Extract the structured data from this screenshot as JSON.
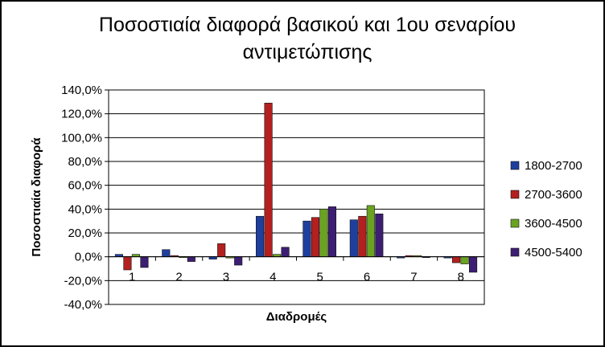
{
  "chart_data": {
    "type": "bar",
    "title": "Ποσοστιαία διαφορά βασικού και 1ου σεναρίου αντιμετώπισης",
    "xlabel": "Διαδρομές",
    "ylabel": "Ποσοστιαία διαφορά",
    "ylim": [
      -40,
      140
    ],
    "ytick_step": 20,
    "yticks": [
      "-40,0%",
      "-20,0%",
      "0,0%",
      "20,0%",
      "40,0%",
      "60,0%",
      "80,0%",
      "100,0%",
      "120,0%",
      "140,0%"
    ],
    "grid": true,
    "legend_position": "right",
    "categories": [
      "1",
      "2",
      "3",
      "4",
      "5",
      "6",
      "7",
      "8"
    ],
    "series": [
      {
        "name": "1800-2700",
        "color": "#1f3f9f",
        "values": [
          2,
          6,
          -2,
          34,
          30,
          31,
          -1,
          -1
        ]
      },
      {
        "name": "2700-3600",
        "color": "#b3201f",
        "values": [
          -11,
          1,
          11,
          129,
          33,
          34,
          1,
          -5
        ]
      },
      {
        "name": "3600-4500",
        "color": "#6aa321",
        "values": [
          2,
          0,
          -1,
          2,
          40,
          43,
          1,
          -6
        ]
      },
      {
        "name": "4500-5400",
        "color": "#3c1f73",
        "values": [
          -9,
          -4,
          -7,
          8,
          42,
          36,
          0,
          -13
        ]
      }
    ]
  }
}
